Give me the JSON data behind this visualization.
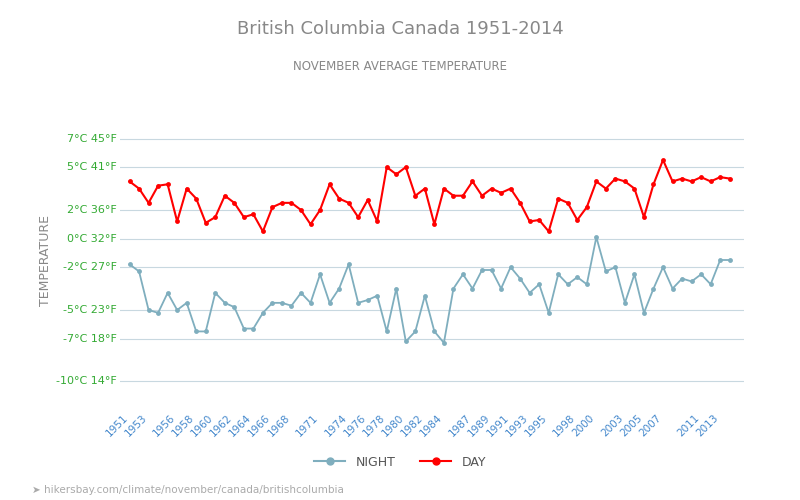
{
  "title": "British Columbia Canada 1951-2014",
  "subtitle": "NOVEMBER AVERAGE TEMPERATURE",
  "ylabel": "TEMPERATURE",
  "url": "hikersbay.com/climate/november/canada/britishcolumbia",
  "years": [
    1951,
    1952,
    1953,
    1954,
    1955,
    1956,
    1957,
    1958,
    1959,
    1960,
    1961,
    1962,
    1963,
    1964,
    1965,
    1966,
    1967,
    1968,
    1969,
    1970,
    1971,
    1972,
    1973,
    1974,
    1975,
    1976,
    1977,
    1978,
    1979,
    1980,
    1981,
    1982,
    1983,
    1984,
    1985,
    1986,
    1987,
    1988,
    1989,
    1990,
    1991,
    1992,
    1993,
    1994,
    1995,
    1996,
    1997,
    1998,
    1999,
    2000,
    2001,
    2002,
    2003,
    2004,
    2005,
    2006,
    2007,
    2008,
    2009,
    2010,
    2011,
    2012,
    2013,
    2014
  ],
  "day": [
    4.0,
    3.5,
    2.5,
    3.7,
    3.8,
    1.2,
    3.5,
    2.8,
    1.1,
    1.5,
    3.0,
    2.5,
    1.5,
    1.7,
    0.5,
    2.2,
    2.5,
    2.5,
    2.0,
    1.0,
    2.0,
    3.8,
    2.8,
    2.5,
    1.5,
    2.7,
    1.2,
    5.0,
    4.5,
    5.0,
    3.0,
    3.5,
    1.0,
    3.5,
    3.0,
    3.0,
    4.0,
    3.0,
    3.5,
    3.2,
    3.5,
    2.5,
    1.2,
    1.3,
    0.5,
    2.8,
    2.5,
    1.3,
    2.2,
    4.0,
    3.5,
    4.2,
    4.0,
    3.5,
    1.5,
    3.8,
    5.5,
    4.0,
    4.2,
    4.0,
    4.3,
    4.0,
    4.3,
    4.2
  ],
  "night": [
    -1.8,
    -2.3,
    -5.0,
    -5.2,
    -3.8,
    -5.0,
    -4.5,
    -6.5,
    -6.5,
    -3.8,
    -4.5,
    -4.8,
    -6.3,
    -6.3,
    -5.2,
    -4.5,
    -4.5,
    -4.7,
    -3.8,
    -4.5,
    -2.5,
    -4.5,
    -3.5,
    -1.8,
    -4.5,
    -4.3,
    -4.0,
    -6.5,
    -3.5,
    -7.2,
    -6.5,
    -4.0,
    -6.5,
    -7.3,
    -3.5,
    -2.5,
    -3.5,
    -2.2,
    -2.2,
    -3.5,
    -2.0,
    -2.8,
    -3.8,
    -3.2,
    -5.2,
    -2.5,
    -3.2,
    -2.7,
    -3.2,
    0.1,
    -2.3,
    -2.0,
    -4.5,
    -2.5,
    -5.2,
    -3.5,
    -2.0,
    -3.5,
    -2.8,
    -3.0,
    -2.5,
    -3.2,
    -1.5,
    -1.5
  ],
  "day_color": "#ff0000",
  "night_color": "#7faebe",
  "bg_color": "#ffffff",
  "grid_color": "#c8d8e0",
  "title_color": "#888888",
  "subtitle_color": "#888888",
  "ylabel_color": "#888888",
  "tick_color": "#33aa33",
  "xtick_color": "#4488cc",
  "ytick_celsius": [
    7,
    5,
    2,
    0,
    -2,
    -5,
    -7,
    -10
  ],
  "ytick_fahrenheit": [
    45,
    41,
    36,
    32,
    27,
    23,
    18,
    14
  ],
  "ylim": [
    -12.0,
    9.0
  ],
  "xlim": [
    1950.0,
    2015.5
  ],
  "xtick_years": [
    1951,
    1953,
    1956,
    1958,
    1960,
    1962,
    1964,
    1966,
    1968,
    1971,
    1974,
    1976,
    1978,
    1980,
    1982,
    1984,
    1987,
    1989,
    1991,
    1993,
    1995,
    1998,
    2000,
    2003,
    2005,
    2007,
    2011,
    2013
  ],
  "legend_night": "NIGHT",
  "legend_day": "DAY",
  "url_symbol": "➤"
}
